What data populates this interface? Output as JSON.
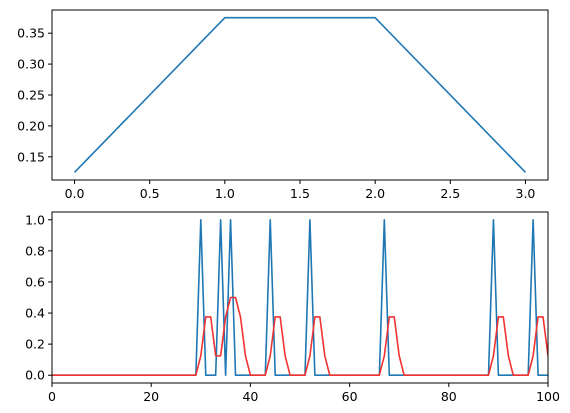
{
  "colors": {
    "blue": "#1f77b4",
    "red": "#f03232"
  },
  "chart_data": [
    {
      "type": "line",
      "title": "",
      "xlabel": "",
      "ylabel": "",
      "grid": false,
      "xlim": [
        -0.15,
        3.15
      ],
      "ylim": [
        0.1125,
        0.3875
      ],
      "xticks": [
        0.0,
        0.5,
        1.0,
        1.5,
        2.0,
        2.5,
        3.0
      ],
      "xtick_labels": [
        "0.0",
        "0.5",
        "1.0",
        "1.5",
        "2.0",
        "2.5",
        "3.0"
      ],
      "yticks": [
        0.15,
        0.2,
        0.25,
        0.3,
        0.35
      ],
      "ytick_labels": [
        "0.15",
        "0.20",
        "0.25",
        "0.30",
        "0.35"
      ],
      "series": [
        {
          "color": "#1f77b4",
          "x": [
            0,
            1,
            2,
            3
          ],
          "y": [
            0.125,
            0.375,
            0.375,
            0.125
          ]
        }
      ]
    },
    {
      "type": "line",
      "title": "",
      "xlabel": "",
      "ylabel": "",
      "grid": false,
      "xlim": [
        0,
        100
      ],
      "ylim": [
        -0.05,
        1.05
      ],
      "xticks": [
        0,
        20,
        40,
        60,
        80,
        100
      ],
      "xtick_labels": [
        "0",
        "20",
        "40",
        "60",
        "80",
        "100"
      ],
      "yticks": [
        0.0,
        0.2,
        0.4,
        0.6,
        0.8,
        1.0
      ],
      "ytick_labels": [
        "0.0",
        "0.2",
        "0.4",
        "0.6",
        "0.8",
        "1.0"
      ],
      "series": [
        {
          "color": "#1f77b4",
          "spikes": [
            30,
            34,
            36,
            44,
            52,
            67,
            89,
            97
          ],
          "x_range": [
            0,
            100
          ],
          "baseline": 0,
          "peak": 1
        },
        {
          "color": "#f03232",
          "x": [
            0,
            29,
            30,
            31,
            32,
            33,
            34,
            35,
            36,
            37,
            38,
            39,
            40,
            41,
            42,
            43,
            44,
            45,
            46,
            47,
            48,
            51,
            52,
            53,
            54,
            55,
            56,
            66,
            67,
            68,
            69,
            70,
            71,
            88,
            89,
            90,
            91,
            92,
            93,
            96,
            97,
            98,
            99,
            100
          ],
          "y": [
            0,
            0,
            0.125,
            0.375,
            0.375,
            0.125,
            0.125,
            0.375,
            0.5,
            0.5,
            0.375,
            0.125,
            0,
            0,
            0,
            0,
            0.125,
            0.375,
            0.375,
            0.125,
            0,
            0,
            0.125,
            0.375,
            0.375,
            0.125,
            0,
            0,
            0.125,
            0.375,
            0.375,
            0.125,
            0,
            0,
            0.125,
            0.375,
            0.375,
            0.125,
            0,
            0,
            0.125,
            0.375,
            0.375,
            0.125
          ]
        }
      ]
    }
  ]
}
